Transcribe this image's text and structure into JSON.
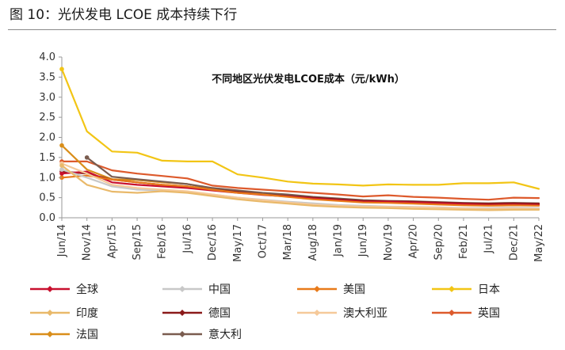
{
  "figure_title": "图 10：光伏发电 LCOE 成本持续下行",
  "chart_data": {
    "type": "line",
    "title": "不同地区光伏发电LCOE成本（元/kWh）",
    "xlabel": "",
    "ylabel": "",
    "ylim": [
      0,
      4
    ],
    "yticks": [
      "4.0",
      "3.5",
      "3.0",
      "2.5",
      "2.0",
      "1.5",
      "1.0",
      "0.5",
      "0.0"
    ],
    "xticks": [
      "Jun/14",
      "Nov/14",
      "Apr/15",
      "Sep/15",
      "Feb/16",
      "Jul/16",
      "Dec/16",
      "May/17",
      "Oct/17",
      "Mar/18",
      "Aug/18",
      "Jan/19",
      "Jun/19",
      "Nov/19",
      "Apr/20",
      "Sep/20",
      "Feb/21",
      "Jul/21",
      "Dec/21",
      "May/22"
    ],
    "grid": false,
    "legend_position": "bottom",
    "x": [
      "2014-06",
      "2014-11",
      "2015-04",
      "2015-09",
      "2016-02",
      "2016-07",
      "2016-12",
      "2017-05",
      "2017-10",
      "2018-03",
      "2018-08",
      "2019-01",
      "2019-06",
      "2019-11",
      "2020-04",
      "2020-09",
      "2021-02",
      "2021-07",
      "2021-12",
      "2022-05"
    ],
    "series": [
      {
        "name": "全球",
        "color": "#c8102e",
        "marker": "diamond",
        "values": [
          1.1,
          1.15,
          0.88,
          0.82,
          0.78,
          0.74,
          0.68,
          0.62,
          0.57,
          0.53,
          0.48,
          0.44,
          0.4,
          0.4,
          0.38,
          0.36,
          0.34,
          0.32,
          0.33,
          0.32
        ]
      },
      {
        "name": "中国",
        "color": "#c8c8c8",
        "marker": "diamond",
        "values": [
          1.2,
          1.0,
          0.78,
          0.7,
          0.68,
          0.64,
          0.58,
          0.5,
          0.45,
          0.4,
          0.36,
          0.32,
          0.3,
          0.28,
          0.27,
          0.26,
          0.24,
          0.24,
          0.25,
          0.24
        ]
      },
      {
        "name": "美国",
        "color": "#e87a1a",
        "marker": "diamond",
        "values": [
          1.0,
          1.05,
          0.95,
          0.88,
          0.82,
          0.78,
          0.7,
          0.62,
          0.58,
          0.52,
          0.46,
          0.42,
          0.38,
          0.37,
          0.35,
          0.33,
          0.31,
          0.3,
          0.31,
          0.3
        ]
      },
      {
        "name": "日本",
        "color": "#f2c515",
        "marker": "diamond",
        "values": [
          3.7,
          2.15,
          1.65,
          1.62,
          1.42,
          1.4,
          1.4,
          1.08,
          1.0,
          0.9,
          0.85,
          0.83,
          0.8,
          0.83,
          0.82,
          0.82,
          0.86,
          0.86,
          0.88,
          0.72
        ]
      },
      {
        "name": "印度",
        "color": "#e9b96a",
        "marker": "diamond",
        "values": [
          1.3,
          0.82,
          0.65,
          0.62,
          0.66,
          0.62,
          0.54,
          0.46,
          0.4,
          0.35,
          0.3,
          0.27,
          0.25,
          0.24,
          0.22,
          0.21,
          0.2,
          0.19,
          0.2,
          0.2
        ]
      },
      {
        "name": "德国",
        "color": "#8b1a1a",
        "marker": "diamond",
        "values": [
          1.15,
          1.1,
          0.95,
          0.88,
          0.82,
          0.78,
          0.7,
          0.64,
          0.58,
          0.54,
          0.5,
          0.46,
          0.42,
          0.41,
          0.4,
          0.38,
          0.36,
          0.35,
          0.36,
          0.35
        ]
      },
      {
        "name": "澳大利亚",
        "color": "#f5c99a",
        "marker": "diamond",
        "values": [
          1.35,
          1.1,
          0.82,
          0.74,
          0.7,
          0.66,
          0.58,
          0.5,
          0.44,
          0.38,
          0.33,
          0.3,
          0.28,
          0.27,
          0.26,
          0.25,
          0.23,
          0.22,
          0.23,
          0.22
        ]
      },
      {
        "name": "英国",
        "color": "#dd5a2c",
        "marker": "diamond",
        "values": [
          1.4,
          1.4,
          1.18,
          1.1,
          1.04,
          0.98,
          0.8,
          0.74,
          0.7,
          0.66,
          0.62,
          0.58,
          0.53,
          0.56,
          0.52,
          0.5,
          0.47,
          0.45,
          0.5,
          0.49
        ]
      },
      {
        "name": "法国",
        "color": "#d98e1a",
        "marker": "diamond",
        "values": [
          1.8,
          1.2,
          0.96,
          0.94,
          0.88,
          0.84,
          0.72,
          0.66,
          0.6,
          0.56,
          0.5,
          0.46,
          0.42,
          0.4,
          0.39,
          0.37,
          0.35,
          0.34,
          0.35,
          0.34
        ]
      },
      {
        "name": "意大利",
        "color": "#7a5c4f",
        "marker": "diamond",
        "values": [
          null,
          1.5,
          1.02,
          0.96,
          0.9,
          0.84,
          0.74,
          0.68,
          0.62,
          0.58,
          0.52,
          0.48,
          0.44,
          0.42,
          0.41,
          0.39,
          0.37,
          0.36,
          0.37,
          0.36
        ]
      }
    ]
  }
}
